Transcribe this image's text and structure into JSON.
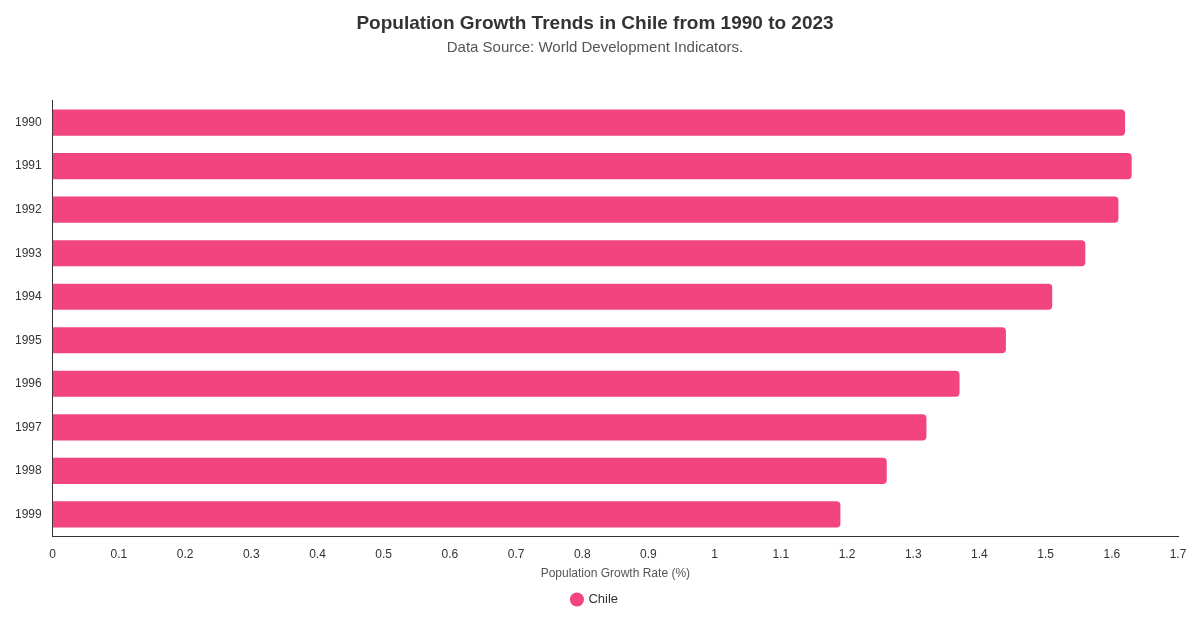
{
  "chart_data": {
    "type": "bar",
    "orientation": "horizontal",
    "title": "Population Growth Trends in Chile from 1990 to 2023",
    "subtitle": "Data Source: World Development Indicators.",
    "xlabel": "Population Growth Rate (%)",
    "categories": [
      "1990",
      "1991",
      "1992",
      "1993",
      "1994",
      "1995",
      "1996",
      "1997",
      "1998",
      "1999"
    ],
    "series": [
      {
        "name": "Chile",
        "color": "#f2457f",
        "values": [
          1.62,
          1.63,
          1.61,
          1.56,
          1.51,
          1.44,
          1.37,
          1.32,
          1.26,
          1.19
        ]
      }
    ],
    "xlim": [
      0,
      1.7
    ],
    "xticks": [
      0,
      0.1,
      0.2,
      0.3,
      0.4,
      0.5,
      0.6,
      0.7,
      0.8,
      0.9,
      1,
      1.1,
      1.2,
      1.3,
      1.4,
      1.5,
      1.6,
      1.7
    ],
    "grid": false,
    "legend": "bottom",
    "marker": "circle"
  }
}
